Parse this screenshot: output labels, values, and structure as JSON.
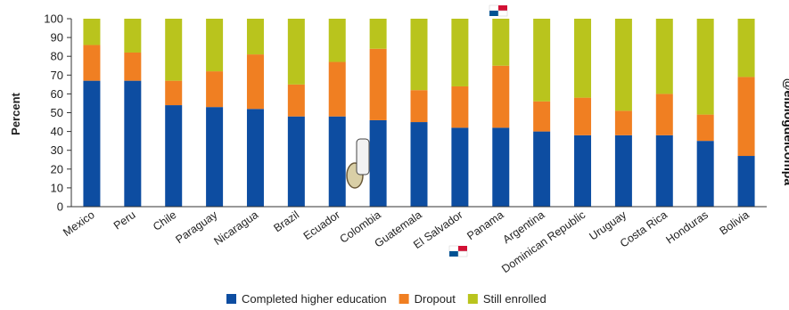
{
  "chart_data": {
    "type": "bar",
    "stacked": true,
    "categories": [
      "Mexico",
      "Peru",
      "Chile",
      "Paraguay",
      "Nicaragua",
      "Brazil",
      "Ecuador",
      "Colombia",
      "Guatemala",
      "El Salvador",
      "Panama",
      "Argentina",
      "Dominican Republic",
      "Uruguay",
      "Costa Rica",
      "Honduras",
      "Bolivia"
    ],
    "series": [
      {
        "name": "Completed higher education",
        "color": "#0d4da1",
        "values": [
          67,
          67,
          54,
          53,
          52,
          48,
          48,
          46,
          45,
          42,
          42,
          40,
          38,
          38,
          38,
          35,
          27
        ]
      },
      {
        "name": "Dropout",
        "color": "#f07f22",
        "values": [
          19,
          15,
          13,
          19,
          29,
          17,
          29,
          38,
          17,
          22,
          33,
          16,
          20,
          13,
          22,
          14,
          42
        ]
      },
      {
        "name": "Still enrolled",
        "color": "#b9c41d",
        "values": [
          14,
          18,
          33,
          28,
          19,
          35,
          23,
          16,
          38,
          36,
          25,
          44,
          42,
          49,
          40,
          51,
          31
        ]
      }
    ],
    "ylabel": "Percent",
    "xlabel": "",
    "title": "",
    "ylim": [
      0,
      100
    ],
    "yticks": [
      "0",
      "10",
      "20",
      "30",
      "40",
      "50",
      "60",
      "70",
      "80",
      "90",
      "100"
    ],
    "grid": false,
    "legend_position": "bottom"
  },
  "watermark": {
    "handle": "@elblogdelcompa"
  },
  "flag_icons": [
    "panama-flag-icon",
    "panama-flag-icon"
  ]
}
